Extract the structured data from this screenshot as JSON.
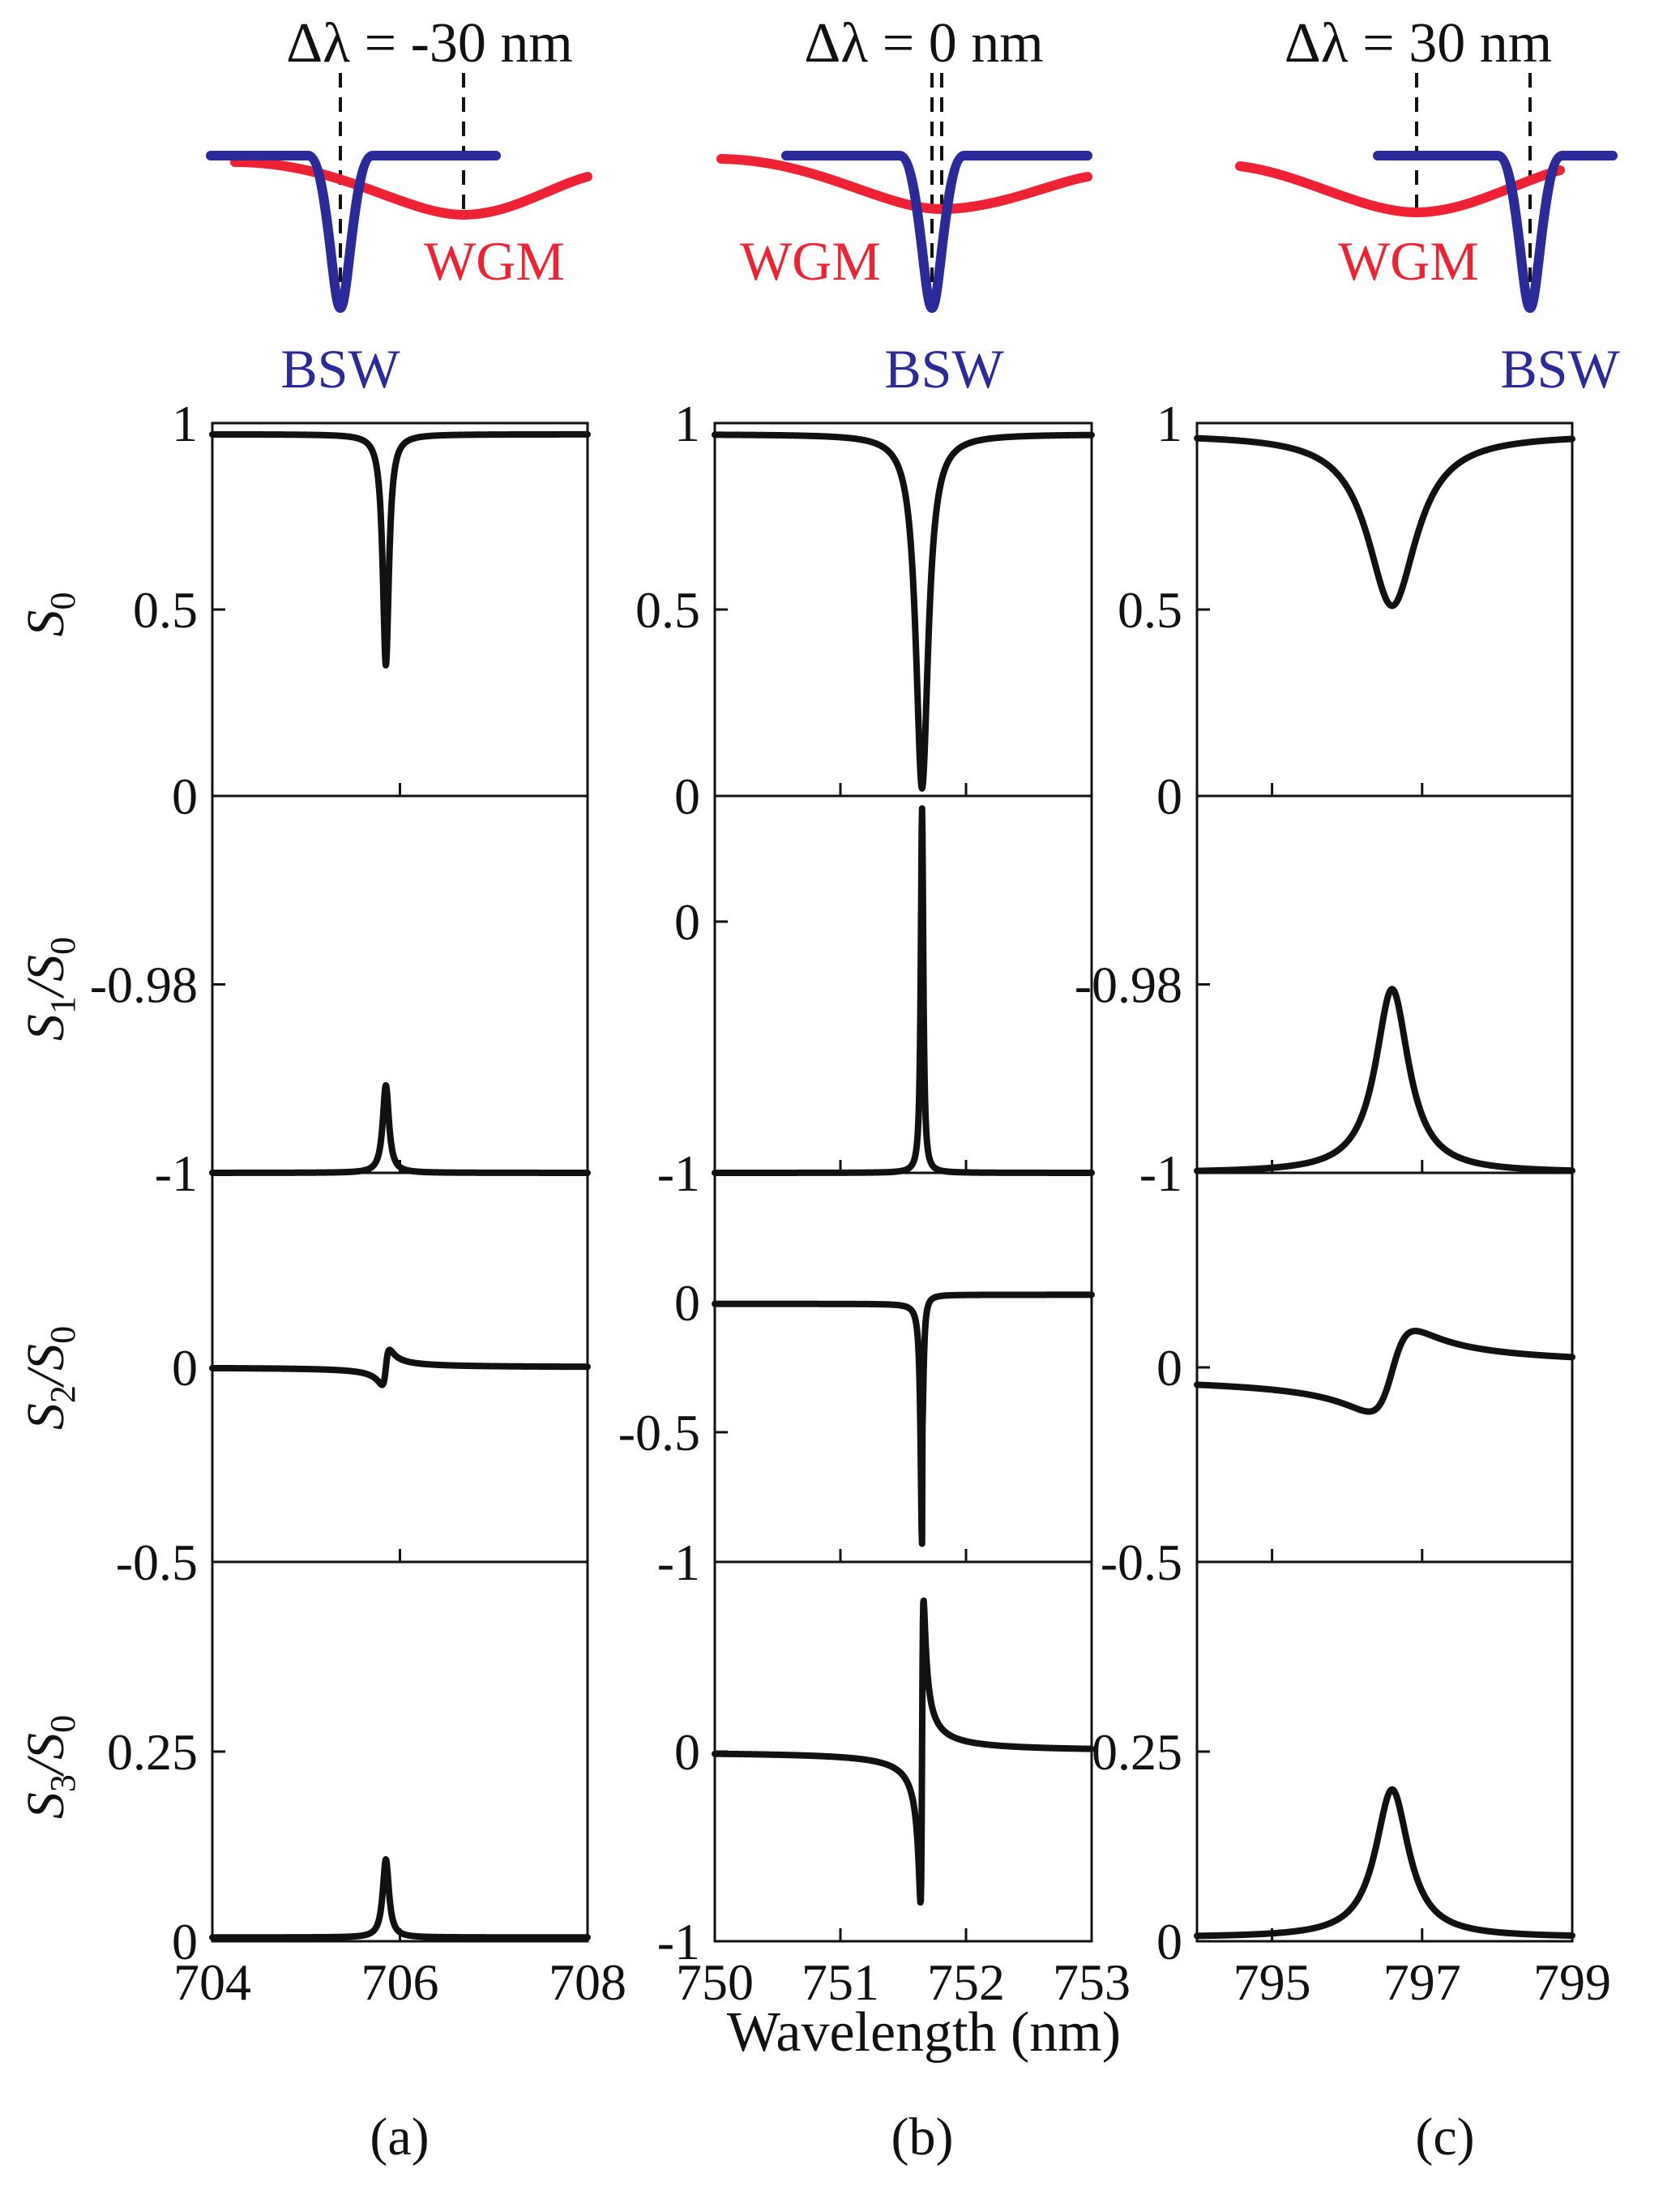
{
  "colors": {
    "bsw": "#2a2a9a",
    "wgm": "#ee2233",
    "curve": "#111111",
    "axis": "#111111"
  },
  "xlabel": "Wavelength (nm)",
  "panel_labels": [
    "(a)",
    "(b)",
    "(c)"
  ],
  "schematic": {
    "bsw_label": "BSW",
    "wgm_label": "WGM",
    "titles": [
      "Δλ = -30 nm",
      "Δλ = 0 nm",
      "Δλ = 30 nm"
    ]
  },
  "ylabels": [
    {
      "main": "S",
      "sub": "0",
      "suffix": ""
    },
    {
      "main": "S",
      "sub": "1",
      "suffix": "/S",
      "sub2": "0"
    },
    {
      "main": "S",
      "sub": "2",
      "suffix": "/S",
      "sub2": "0"
    },
    {
      "main": "S",
      "sub": "3",
      "suffix": "/S",
      "sub2": "0"
    }
  ],
  "chart_data": [
    {
      "type": "line",
      "column": "a",
      "row": "S0",
      "xlim": [
        704,
        708
      ],
      "ylim": [
        0,
        1
      ],
      "xticks": [
        "704",
        "706",
        "708"
      ],
      "yticks": [
        {
          "v": 1,
          "t": "1"
        },
        {
          "v": 0.5,
          "t": "0.5"
        },
        {
          "v": 0,
          "t": "0"
        }
      ],
      "curve": {
        "kind": "dip",
        "x0": 705.85,
        "w": 0.04,
        "base": 0.97,
        "depth": 0.62
      }
    },
    {
      "type": "line",
      "column": "a",
      "row": "S1/S0",
      "xlim": [
        704,
        708
      ],
      "ylim": [
        -1,
        -0.96
      ],
      "xticks": [
        "704",
        "706",
        "708"
      ],
      "yticks": [
        {
          "v": -0.98,
          "t": "-0.98"
        },
        {
          "v": -1,
          "t": "-1"
        }
      ],
      "curve": {
        "kind": "peak",
        "x0": 705.85,
        "w": 0.04,
        "base": -1,
        "amp": 0.0093
      }
    },
    {
      "type": "line",
      "column": "a",
      "row": "S2/S0",
      "xlim": [
        704,
        708
      ],
      "ylim": [
        -0.5,
        0.5
      ],
      "xticks": [
        "704",
        "706",
        "708"
      ],
      "yticks": [
        {
          "v": 0,
          "t": "0"
        },
        {
          "v": -0.5,
          "t": "-0.5"
        }
      ],
      "curve": {
        "kind": "disp",
        "x0": 705.85,
        "w": 0.04,
        "base": 0,
        "amp": 0.09
      }
    },
    {
      "type": "line",
      "column": "a",
      "row": "S3/S0",
      "xlim": [
        704,
        708
      ],
      "ylim": [
        0,
        0.5
      ],
      "xticks": [
        "704",
        "706",
        "708"
      ],
      "yticks": [
        {
          "v": 0.25,
          "t": "0.25"
        },
        {
          "v": 0,
          "t": "0"
        }
      ],
      "curve": {
        "kind": "peak",
        "x0": 705.85,
        "w": 0.04,
        "base": 0.005,
        "amp": 0.103
      }
    },
    {
      "type": "line",
      "column": "b",
      "row": "S0",
      "xlim": [
        750,
        753
      ],
      "ylim": [
        0,
        1
      ],
      "xticks": [
        "750",
        "751",
        "752",
        "753"
      ],
      "yticks": [
        {
          "v": 1,
          "t": "1"
        },
        {
          "v": 0.5,
          "t": "0.5"
        },
        {
          "v": 0,
          "t": "0"
        }
      ],
      "curve": {
        "kind": "dip",
        "x0": 751.65,
        "w": 0.06,
        "base": 0.97,
        "depth": 0.95
      }
    },
    {
      "type": "line",
      "column": "b",
      "row": "S1/S0",
      "xlim": [
        750,
        753
      ],
      "ylim": [
        -1,
        0.5
      ],
      "xticks": [
        "750",
        "751",
        "752",
        "753"
      ],
      "yticks": [
        {
          "v": 0,
          "t": "0"
        },
        {
          "v": -1,
          "t": "-1"
        }
      ],
      "curve": {
        "kind": "peak",
        "x0": 751.65,
        "w": 0.012,
        "base": -1,
        "amp": 1.45
      }
    },
    {
      "type": "line",
      "column": "b",
      "row": "S2/S0",
      "xlim": [
        750,
        753
      ],
      "ylim": [
        -1,
        0.5
      ],
      "xticks": [
        "750",
        "751",
        "752",
        "753"
      ],
      "yticks": [
        {
          "v": 0,
          "t": "0"
        },
        {
          "v": -0.5,
          "t": "-0.5"
        },
        {
          "v": -1,
          "t": "-1"
        }
      ],
      "curve": {
        "kind": "asym",
        "x0": 751.65,
        "w": 0.014,
        "base": 0,
        "neg": 0.93,
        "pos": 0.03
      }
    },
    {
      "type": "line",
      "column": "b",
      "row": "S3/S0",
      "xlim": [
        750,
        753
      ],
      "ylim": [
        -1,
        1
      ],
      "xticks": [
        "750",
        "751",
        "752",
        "753"
      ],
      "yticks": [
        {
          "v": 0,
          "t": "0"
        },
        {
          "v": -1,
          "t": "-1"
        }
      ],
      "curve": {
        "kind": "disp",
        "x0": 751.65,
        "w": 0.012,
        "base": 0,
        "amp": 1.6
      }
    },
    {
      "type": "line",
      "column": "c",
      "row": "S0",
      "xlim": [
        794,
        799
      ],
      "ylim": [
        0,
        1
      ],
      "xticks": [
        "795",
        "797",
        "799"
      ],
      "yticks": [
        {
          "v": 1,
          "t": "1"
        },
        {
          "v": 0.5,
          "t": "0.5"
        },
        {
          "v": 0,
          "t": "0"
        }
      ],
      "curve": {
        "kind": "dip",
        "x0": 796.6,
        "w": 0.4,
        "base": 0.97,
        "depth": 0.46
      }
    },
    {
      "type": "line",
      "column": "c",
      "row": "S1/S0",
      "xlim": [
        794,
        799
      ],
      "ylim": [
        -1,
        -0.96
      ],
      "xticks": [
        "795",
        "797",
        "799"
      ],
      "yticks": [
        {
          "v": -0.98,
          "t": "-0.98"
        },
        {
          "v": -1,
          "t": "-1"
        }
      ],
      "curve": {
        "kind": "peak",
        "x0": 796.6,
        "w": 0.27,
        "base": -1,
        "amp": 0.0195
      }
    },
    {
      "type": "line",
      "column": "c",
      "row": "S2/S0",
      "xlim": [
        794,
        799
      ],
      "ylim": [
        -0.5,
        0.5
      ],
      "xticks": [
        "795",
        "797",
        "799"
      ],
      "yticks": [
        {
          "v": 0,
          "t": "0"
        },
        {
          "v": -0.5,
          "t": "-0.5"
        }
      ],
      "curve": {
        "kind": "disp",
        "x0": 796.6,
        "w": 0.3,
        "base": -0.01,
        "amp": 0.2,
        "slope": 0.012
      }
    },
    {
      "type": "line",
      "column": "c",
      "row": "S3/S0",
      "xlim": [
        794,
        799
      ],
      "ylim": [
        0,
        0.5
      ],
      "xticks": [
        "795",
        "797",
        "799"
      ],
      "yticks": [
        {
          "v": 0.25,
          "t": "0.25"
        },
        {
          "v": 0,
          "t": "0"
        }
      ],
      "curve": {
        "kind": "peak",
        "x0": 796.6,
        "w": 0.27,
        "base": 0.005,
        "amp": 0.195
      }
    }
  ]
}
